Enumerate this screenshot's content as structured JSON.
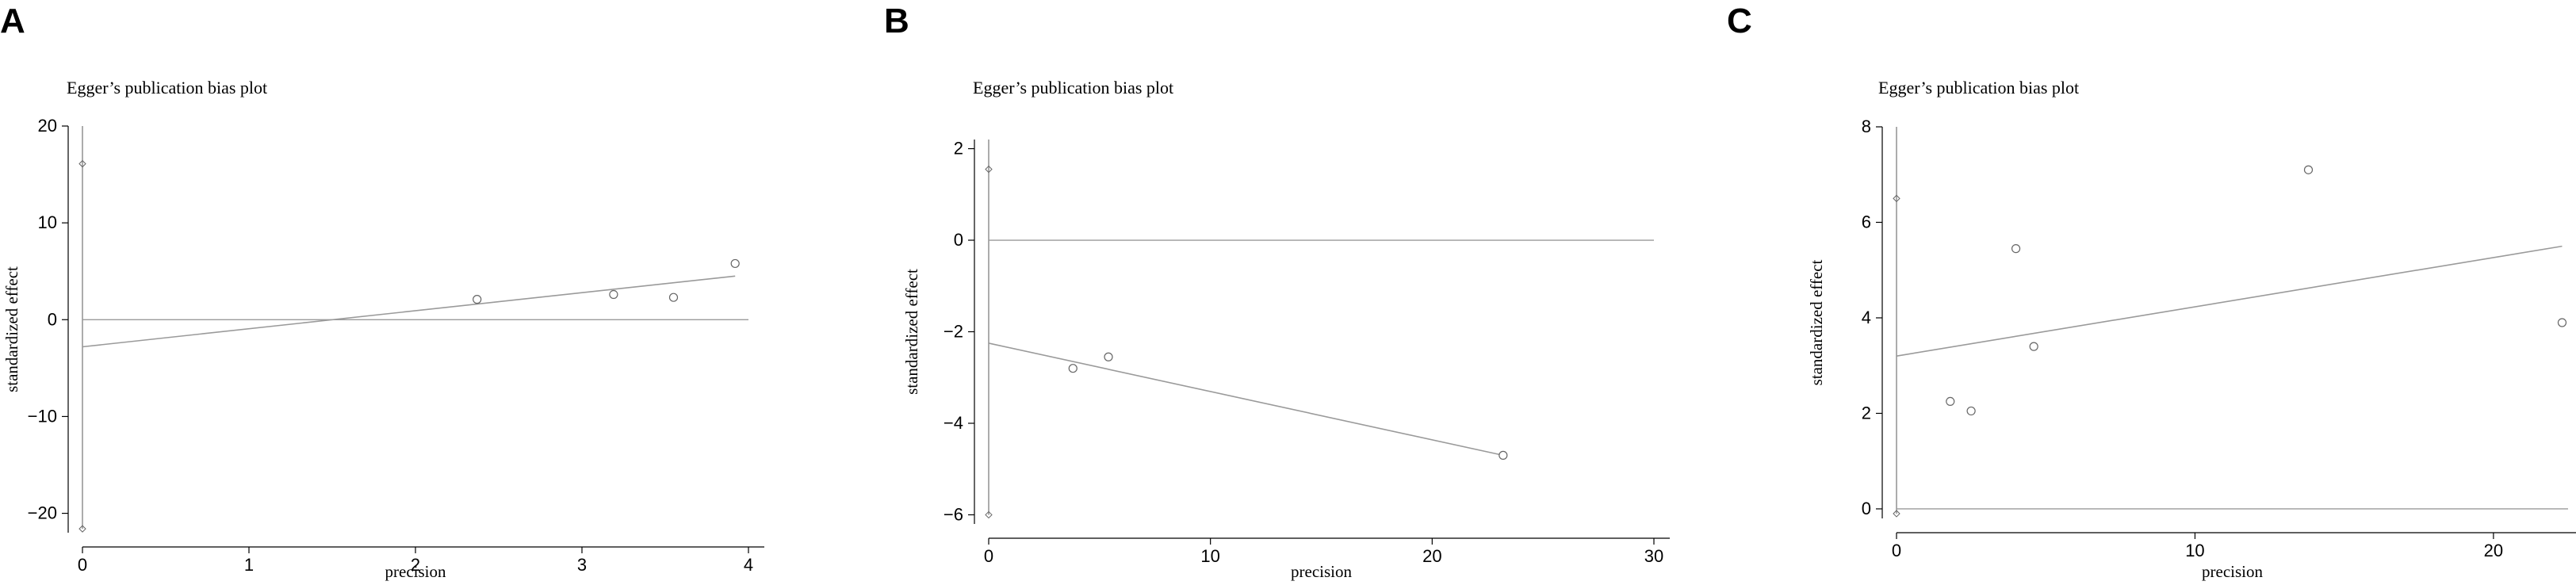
{
  "chart_data": [
    {
      "panel_label": "A",
      "type": "scatter",
      "title": "Egger’s publication bias plot",
      "xlabel": "precision",
      "ylabel": "standardized effect",
      "xlim": [
        0,
        4
      ],
      "ylim": [
        -22,
        20
      ],
      "xticks": [
        0,
        1,
        2,
        3,
        4
      ],
      "yticks": [
        -20,
        -10,
        0,
        10,
        20
      ],
      "points": [
        [
          2.37,
          2.1
        ],
        [
          3.19,
          2.6
        ],
        [
          3.55,
          2.3
        ],
        [
          3.92,
          5.8
        ]
      ],
      "ci_points": [
        [
          0,
          16.1
        ],
        [
          0,
          -21.6
        ]
      ],
      "reference_line_y": 0,
      "regression_line": [
        [
          0,
          -2.8
        ],
        [
          3.92,
          4.5
        ]
      ]
    },
    {
      "panel_label": "B",
      "type": "scatter",
      "title": "Egger’s publication bias plot",
      "xlabel": "precision",
      "ylabel": "standardized effect",
      "xlim": [
        0,
        30
      ],
      "ylim": [
        -6.2,
        2.2
      ],
      "xticks": [
        0,
        10,
        20,
        30
      ],
      "yticks": [
        -6,
        -4,
        -2,
        0,
        2
      ],
      "points": [
        [
          3.8,
          -2.8
        ],
        [
          5.4,
          -2.55
        ],
        [
          23.2,
          -4.7
        ]
      ],
      "ci_points": [
        [
          0,
          1.55
        ],
        [
          0,
          -6.0
        ]
      ],
      "reference_line_y": 0,
      "regression_line": [
        [
          0,
          -2.25
        ],
        [
          23.2,
          -4.7
        ]
      ]
    },
    {
      "panel_label": "C",
      "type": "scatter",
      "title": "Egger’s publication bias plot",
      "xlabel": "precision",
      "ylabel": "standardized effect",
      "xlim": [
        0,
        22.5
      ],
      "ylim": [
        -0.2,
        8.0
      ],
      "xticks": [
        0,
        10,
        20
      ],
      "yticks": [
        0,
        2,
        4,
        6,
        8
      ],
      "points": [
        [
          1.8,
          2.25
        ],
        [
          2.5,
          2.05
        ],
        [
          4.0,
          5.45
        ],
        [
          4.6,
          3.4
        ],
        [
          13.8,
          7.1
        ],
        [
          22.3,
          3.9
        ]
      ],
      "ci_points": [
        [
          0,
          6.5
        ],
        [
          0,
          -0.1
        ]
      ],
      "reference_line_y": 0,
      "regression_line": [
        [
          0,
          3.2
        ],
        [
          22.3,
          5.5
        ]
      ]
    }
  ]
}
